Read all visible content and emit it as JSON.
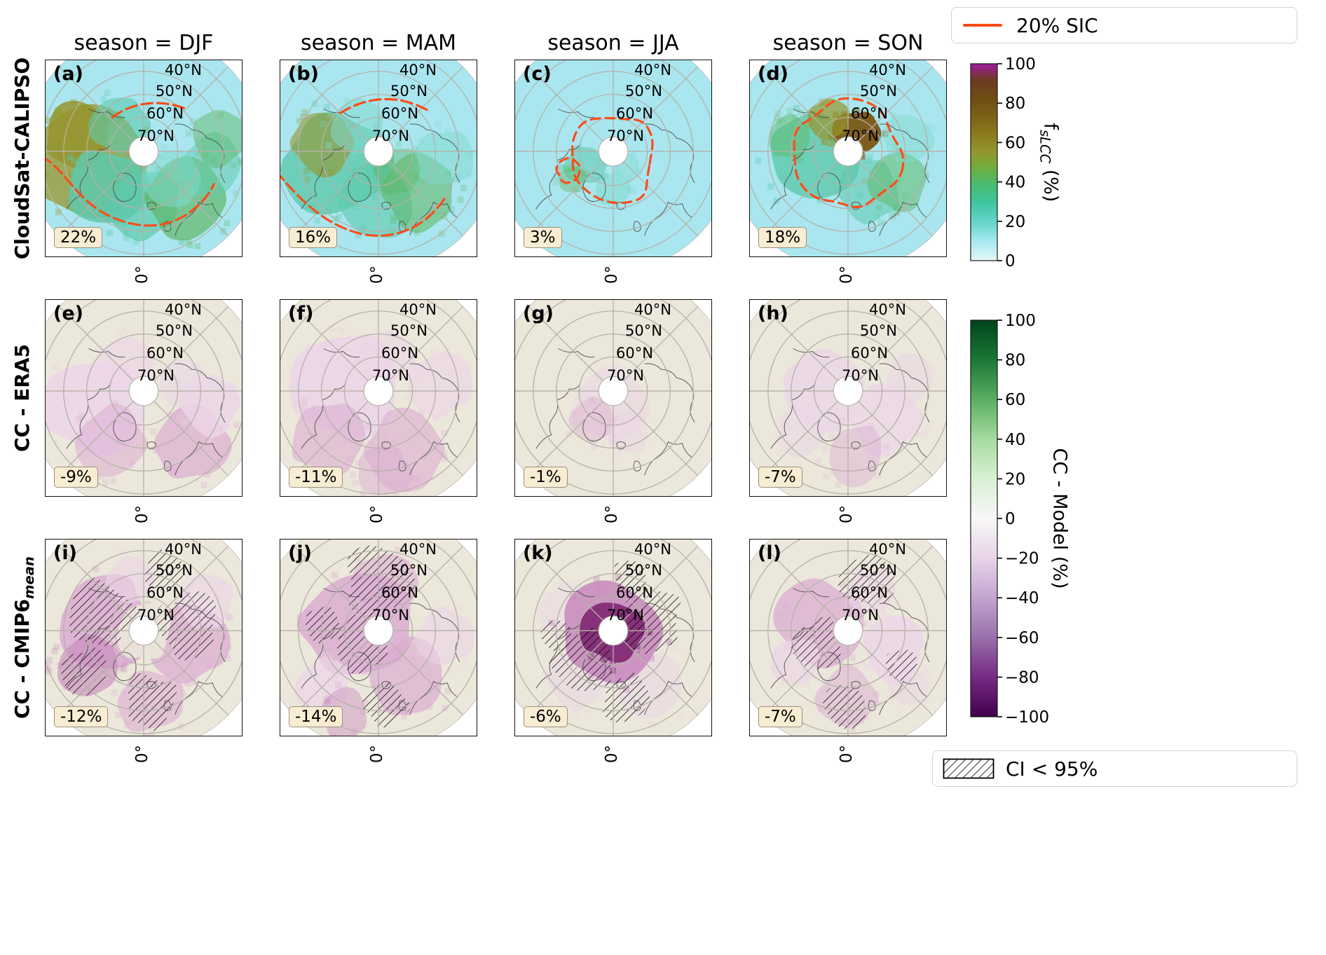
{
  "columns": [
    "season = DJF",
    "season = MAM",
    "season = JJA",
    "season = SON"
  ],
  "rows": [
    {
      "text": "CloudSat-CALIPSO",
      "sub": ""
    },
    {
      "text": "CC - ERA5",
      "sub": ""
    },
    {
      "text": "CC - CMIP6",
      "sub": "mean"
    }
  ],
  "panels": [
    {
      "letter": "a",
      "label": "(a)",
      "season": "DJF",
      "badge": "22%",
      "row": 0,
      "col": 0
    },
    {
      "letter": "b",
      "label": "(b)",
      "season": "MAM",
      "badge": "16%",
      "row": 0,
      "col": 1
    },
    {
      "letter": "c",
      "label": "(c)",
      "season": "JJA",
      "badge": "3%",
      "row": 0,
      "col": 2
    },
    {
      "letter": "d",
      "label": "(d)",
      "season": "SON",
      "badge": "18%",
      "row": 0,
      "col": 3
    },
    {
      "letter": "e",
      "label": "(e)",
      "season": "DJF",
      "badge": "-9%",
      "row": 1,
      "col": 0
    },
    {
      "letter": "f",
      "label": "(f)",
      "season": "MAM",
      "badge": "-11%",
      "row": 1,
      "col": 1
    },
    {
      "letter": "g",
      "label": "(g)",
      "season": "JJA",
      "badge": "-1%",
      "row": 1,
      "col": 2
    },
    {
      "letter": "h",
      "label": "(h)",
      "season": "SON",
      "badge": "-7%",
      "row": 1,
      "col": 3
    },
    {
      "letter": "i",
      "label": "(i)",
      "season": "DJF",
      "badge": "-12%",
      "row": 2,
      "col": 0
    },
    {
      "letter": "j",
      "label": "(j)",
      "season": "MAM",
      "badge": "-14%",
      "row": 2,
      "col": 1
    },
    {
      "letter": "k",
      "label": "(k)",
      "season": "JJA",
      "badge": "-6%",
      "row": 2,
      "col": 2
    },
    {
      "letter": "l",
      "label": "(l)",
      "season": "SON",
      "badge": "-7%",
      "row": 2,
      "col": 3
    }
  ],
  "lat_labels": [
    "40°N",
    "50°N",
    "60°N",
    "70°N"
  ],
  "lon_label": "0°",
  "colorbar_top": {
    "title_parts": {
      "prefix": "f",
      "sub": "sLCC",
      "suffix": " (%)"
    },
    "ticks": [
      "100",
      "80",
      "60",
      "40",
      "20",
      "0"
    ],
    "stops": [
      [
        "0%",
        "#a11a9e"
      ],
      [
        "8%",
        "#6d3a23"
      ],
      [
        "16%",
        "#6e4a14"
      ],
      [
        "26%",
        "#7a5f16"
      ],
      [
        "36%",
        "#8c7c1e"
      ],
      [
        "45%",
        "#93962c"
      ],
      [
        "53%",
        "#6fae3f"
      ],
      [
        "61%",
        "#4bbc6e"
      ],
      [
        "70%",
        "#3ec49b"
      ],
      [
        "80%",
        "#63d4c8"
      ],
      [
        "90%",
        "#a5e8ef"
      ],
      [
        "100%",
        "#e4f7fa"
      ]
    ]
  },
  "colorbar_bottom": {
    "label": "CC - Model (%)",
    "ticks": [
      "100",
      "80",
      "60",
      "40",
      "20",
      "0",
      "−20",
      "−40",
      "−60",
      "−80",
      "−100"
    ],
    "stops": [
      [
        "0%",
        "#00441b"
      ],
      [
        "10%",
        "#1b7837"
      ],
      [
        "20%",
        "#5aae61"
      ],
      [
        "30%",
        "#a6dba0"
      ],
      [
        "40%",
        "#d9f0d3"
      ],
      [
        "50%",
        "#f7f7f7"
      ],
      [
        "60%",
        "#e7d4e8"
      ],
      [
        "70%",
        "#c2a5cf"
      ],
      [
        "80%",
        "#9970ab"
      ],
      [
        "90%",
        "#762a83"
      ],
      [
        "100%",
        "#40004b"
      ]
    ]
  },
  "legend_sic": {
    "label": "20% SIC"
  },
  "legend_ci": {
    "label": "CI < 95%"
  },
  "palette": {
    "obs_base": "#a9e6ef",
    "obs_teal": "#5ec9ab",
    "obs_teal_light": "#7fd9cd",
    "obs_green": "#5cb55f",
    "obs_olive": "#97952c",
    "obs_brown": "#7c5714",
    "diff_base": "#ebe7da",
    "pink_light": "#ecd6e7",
    "pink_mid": "#dcadd2",
    "pink_deep": "#c887bd",
    "purple_dark": "#842c77",
    "sic_orange": "#fc4c19",
    "grid": "#b5b1a8",
    "coast": "#4d4d4d",
    "badge_bg": "#f8ecd2"
  },
  "chart_data": {
    "type": "heatmap",
    "description": "3x4 grid of north polar stereographic maps of supercooled liquid cloud cover; rows are datasets, columns are seasons; each panel shows the area-mean value in a badge.",
    "row_datasets": [
      "CloudSat-CALIPSO (fsLCC, %)",
      "CC - ERA5 difference (%)",
      "CC - CMIP6_mean difference (%)"
    ],
    "columns": [
      "DJF",
      "MAM",
      "JJA",
      "SON"
    ],
    "panel_letters": [
      [
        "a",
        "b",
        "c",
        "d"
      ],
      [
        "e",
        "f",
        "g",
        "h"
      ],
      [
        "i",
        "j",
        "k",
        "l"
      ]
    ],
    "panel_mean_values_percent": [
      [
        22,
        16,
        3,
        18
      ],
      [
        -9,
        -11,
        -1,
        -7
      ],
      [
        -12,
        -14,
        -6,
        -7
      ]
    ],
    "colorbar_top": {
      "label": "f_sLCC (%)",
      "range": [
        0,
        100
      ],
      "tick_step": 20
    },
    "colorbar_bottom": {
      "label": "CC - Model (%)",
      "range": [
        -100,
        100
      ],
      "tick_step": 20
    },
    "map_graticule": {
      "latitude_labels": [
        "40°N",
        "50°N",
        "60°N",
        "70°N"
      ],
      "longitude_label": "0°"
    },
    "overlays": [
      "orange contour = 20% sea-ice concentration (top row)",
      "hatching = CI < 95% (bottom row)"
    ]
  }
}
